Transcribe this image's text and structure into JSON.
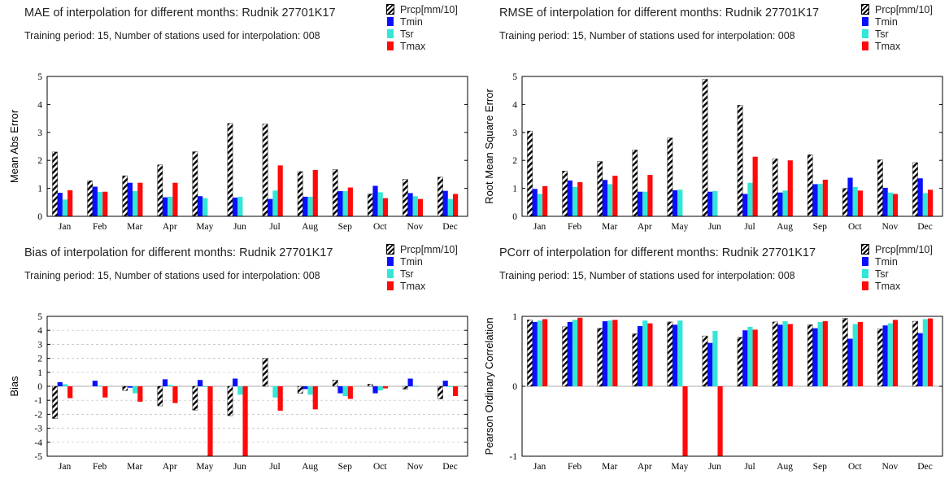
{
  "chart_data": [
    {
      "type": "bar",
      "title": "MAE of interpolation for different months: Rudnik  27701K17",
      "subtitle": "Training period: 15, Number of stations used for interpolation: 008",
      "ylabel": "Mean Abs Error",
      "xlabel": "",
      "ylim": [
        0,
        5
      ],
      "yticks": [
        0,
        1,
        2,
        3,
        4,
        5
      ],
      "grid": false,
      "legend_position": "top-right",
      "categories": [
        "Jan",
        "Feb",
        "Mar",
        "Apr",
        "May",
        "Jun",
        "Jul",
        "Aug",
        "Sep",
        "Oct",
        "Nov",
        "Dec"
      ],
      "series": [
        {
          "name": "Prcp[mm/10]",
          "color": "#000000",
          "pattern": "hatch",
          "values": [
            2.3,
            1.27,
            1.45,
            1.84,
            2.31,
            3.32,
            3.3,
            1.6,
            1.67,
            0.8,
            1.32,
            1.4
          ]
        },
        {
          "name": "Tmin",
          "color": "#0a10ff",
          "values": [
            0.84,
            1.06,
            1.2,
            0.68,
            0.72,
            0.67,
            0.62,
            0.7,
            0.9,
            1.09,
            0.83,
            0.91
          ]
        },
        {
          "name": "Tsr",
          "color": "#33e6d6",
          "values": [
            0.6,
            0.87,
            0.9,
            0.7,
            0.65,
            0.7,
            0.92,
            0.7,
            0.9,
            0.86,
            0.72,
            0.62
          ]
        },
        {
          "name": "Tmax",
          "color": "#ff0a0a",
          "values": [
            0.93,
            0.88,
            1.2,
            1.2,
            0.0,
            0.0,
            1.82,
            1.66,
            1.03,
            0.65,
            0.62,
            0.8
          ]
        }
      ]
    },
    {
      "type": "bar",
      "title": "RMSE of interpolation for different months: Rudnik  27701K17",
      "subtitle": "Training period: 15, Number of stations used for interpolation: 008",
      "ylabel": "Root Mean Square Error",
      "xlabel": "",
      "ylim": [
        0,
        5
      ],
      "yticks": [
        0,
        1,
        2,
        3,
        4,
        5
      ],
      "grid": false,
      "legend_position": "top-right",
      "categories": [
        "Jan",
        "Feb",
        "Mar",
        "Apr",
        "May",
        "Jun",
        "Jul",
        "Aug",
        "Sep",
        "Oct",
        "Nov",
        "Dec"
      ],
      "series": [
        {
          "name": "Prcp[mm/10]",
          "color": "#000000",
          "pattern": "hatch",
          "values": [
            3.05,
            1.62,
            1.96,
            2.37,
            2.8,
            4.9,
            3.97,
            2.06,
            2.2,
            1.0,
            2.02,
            1.92
          ]
        },
        {
          "name": "Tmin",
          "color": "#0a10ff",
          "values": [
            0.98,
            1.28,
            1.3,
            0.88,
            0.93,
            0.88,
            0.8,
            0.85,
            1.15,
            1.38,
            1.02,
            1.36
          ]
        },
        {
          "name": "Tsr",
          "color": "#33e6d6",
          "values": [
            0.8,
            1.05,
            1.15,
            0.88,
            0.95,
            0.9,
            1.2,
            0.92,
            1.16,
            1.05,
            0.85,
            0.83
          ]
        },
        {
          "name": "Tmax",
          "color": "#ff0a0a",
          "values": [
            1.08,
            1.22,
            1.45,
            1.48,
            0.0,
            0.0,
            2.13,
            2.0,
            1.31,
            0.92,
            0.8,
            0.95
          ]
        }
      ]
    },
    {
      "type": "bar",
      "title": "Bias of interpolation for different months: Rudnik  27701K17",
      "subtitle": "Training period: 15, Number of stations used for interpolation: 008",
      "ylabel": "Bias",
      "xlabel": "",
      "ylim": [
        -5,
        5
      ],
      "yticks": [
        -5,
        -4,
        -3,
        -2,
        -1,
        0,
        1,
        2,
        3,
        4,
        5
      ],
      "grid": true,
      "legend_position": "top-right",
      "categories": [
        "Jan",
        "Feb",
        "Mar",
        "Apr",
        "May",
        "Jun",
        "Jul",
        "Aug",
        "Sep",
        "Oct",
        "Nov",
        "Dec"
      ],
      "series": [
        {
          "name": "Prcp[mm/10]",
          "color": "#000000",
          "pattern": "hatch",
          "values": [
            -2.3,
            0.0,
            -0.3,
            -1.4,
            -1.7,
            -2.1,
            2.0,
            -0.5,
            0.45,
            0.15,
            -0.2,
            -0.9
          ]
        },
        {
          "name": "Tmin",
          "color": "#0a10ff",
          "values": [
            0.3,
            0.4,
            -0.1,
            0.5,
            0.45,
            0.55,
            0.0,
            -0.2,
            -0.5,
            -0.5,
            0.55,
            0.4
          ]
        },
        {
          "name": "Tsr",
          "color": "#33e6d6",
          "values": [
            0.15,
            0.05,
            -0.5,
            0.1,
            -0.05,
            -0.6,
            -0.8,
            -0.6,
            -0.7,
            -0.3,
            -0.05,
            -0.05
          ]
        },
        {
          "name": "Tmax",
          "color": "#ff0a0a",
          "values": [
            -0.85,
            -0.8,
            -1.1,
            -1.2,
            -5.0,
            -5.0,
            -1.75,
            -1.65,
            -0.9,
            -0.15,
            0.0,
            -0.7
          ]
        }
      ]
    },
    {
      "type": "bar",
      "title": "PCorr of interpolation for different months: Rudnik  27701K17",
      "subtitle": "Training period: 15, Number of stations used for interpolation: 008",
      "ylabel": "Pearson Ordinary Correlation",
      "xlabel": "",
      "ylim": [
        -1,
        1
      ],
      "yticks": [
        -1,
        0,
        1
      ],
      "grid": true,
      "legend_position": "top-right",
      "categories": [
        "Jan",
        "Feb",
        "Mar",
        "Apr",
        "May",
        "Jun",
        "Jul",
        "Aug",
        "Sep",
        "Oct",
        "Nov",
        "Dec"
      ],
      "series": [
        {
          "name": "Prcp[mm/10]",
          "color": "#000000",
          "pattern": "hatch",
          "values": [
            0.95,
            0.85,
            0.83,
            0.75,
            0.92,
            0.72,
            0.7,
            0.92,
            0.88,
            0.97,
            0.82,
            0.93
          ]
        },
        {
          "name": "Tmin",
          "color": "#0a10ff",
          "values": [
            0.92,
            0.92,
            0.93,
            0.86,
            0.88,
            0.62,
            0.8,
            0.88,
            0.83,
            0.68,
            0.87,
            0.76
          ]
        },
        {
          "name": "Tsr",
          "color": "#33e6d6",
          "values": [
            0.94,
            0.95,
            0.94,
            0.94,
            0.94,
            0.79,
            0.85,
            0.93,
            0.92,
            0.89,
            0.9,
            0.96
          ]
        },
        {
          "name": "Tmax",
          "color": "#ff0a0a",
          "values": [
            0.96,
            0.98,
            0.95,
            0.9,
            -1.0,
            -1.0,
            0.81,
            0.89,
            0.93,
            0.92,
            0.95,
            0.97
          ]
        }
      ]
    }
  ]
}
